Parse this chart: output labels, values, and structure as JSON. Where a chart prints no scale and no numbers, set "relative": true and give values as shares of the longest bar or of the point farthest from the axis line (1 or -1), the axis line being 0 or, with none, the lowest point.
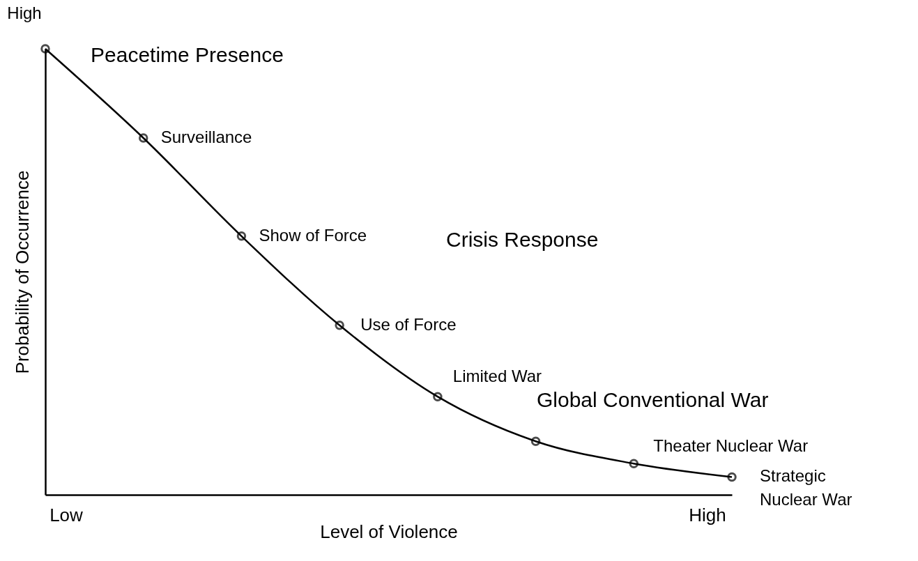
{
  "chart_data": {
    "type": "line",
    "relative": true,
    "xlabel": "Level of Violence",
    "ylabel": "Probability of Occurrence",
    "categories": [
      null,
      null,
      null,
      null,
      null,
      null,
      null,
      null
    ],
    "series": [
      {
        "color": "#000000",
        "values": [
          1,
          0.8,
          0.58,
          0.38,
          0.22,
          0.12,
          0.07,
          0.04
        ]
      }
    ],
    "marker": "circle",
    "line_style": "solid",
    "grid": false,
    "legend": false,
    "annotations": [
      "High",
      "Peacetime Presence",
      "Crisis Response",
      "Global Conventional War",
      "Low",
      "High",
      "Surveillance",
      "Show of Force",
      "Use of Force",
      "Limited War",
      "Theater Nuclear War",
      "Strategic\nNuclear War"
    ]
  }
}
